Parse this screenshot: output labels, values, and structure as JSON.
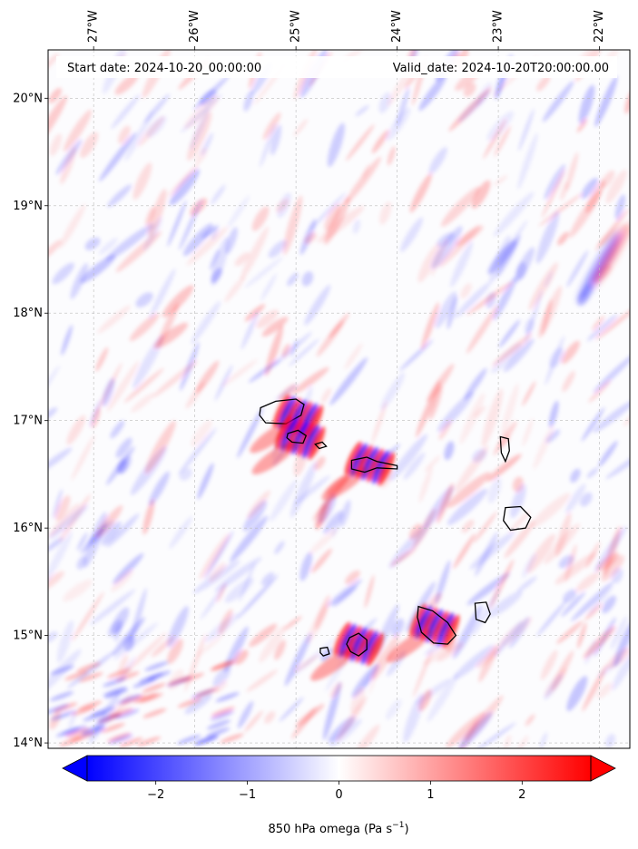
{
  "header": {
    "start_date": "Start date: 2024-10-20_00:00:00",
    "valid_date": "Valid_date: 2024-10-20T20:00:00.00"
  },
  "map": {
    "projection": "lat-lon",
    "lon_range": [
      -27.45,
      -21.7
    ],
    "lat_range": [
      13.95,
      20.45
    ],
    "grid": true,
    "lon_ticks": [
      {
        "value": -27,
        "label": "27°W"
      },
      {
        "value": -26,
        "label": "26°W"
      },
      {
        "value": -25,
        "label": "25°W"
      },
      {
        "value": -24,
        "label": "24°W"
      },
      {
        "value": -23,
        "label": "23°W"
      },
      {
        "value": -22,
        "label": "22°W"
      }
    ],
    "lat_ticks": [
      {
        "value": 20,
        "label": "20°N"
      },
      {
        "value": 19,
        "label": "19°N"
      },
      {
        "value": 18,
        "label": "18°N"
      },
      {
        "value": 17,
        "label": "17°N"
      },
      {
        "value": 16,
        "label": "16°N"
      },
      {
        "value": 15,
        "label": "15°N"
      },
      {
        "value": 14,
        "label": "14°N"
      }
    ],
    "field_colormap": "bwr",
    "islands": [
      {
        "name": "Santo Antão",
        "lon": -24.98,
        "lat": 17.04,
        "strong_omega": true
      },
      {
        "name": "São Vicente",
        "lon": -24.96,
        "lat": 16.84,
        "strong_omega": true
      },
      {
        "name": "Santa Luzia",
        "lon": -24.75,
        "lat": 16.76,
        "strong_omega": false
      },
      {
        "name": "São Nicolau",
        "lon": -24.27,
        "lat": 16.6,
        "strong_omega": true
      },
      {
        "name": "Sal",
        "lon": -22.93,
        "lat": 16.74,
        "strong_omega": false
      },
      {
        "name": "Boa Vista",
        "lon": -22.83,
        "lat": 16.09,
        "strong_omega": false
      },
      {
        "name": "Maio",
        "lon": -23.17,
        "lat": 15.2,
        "strong_omega": false
      },
      {
        "name": "Santiago",
        "lon": -23.63,
        "lat": 15.09,
        "strong_omega": true
      },
      {
        "name": "Fogo",
        "lon": -24.38,
        "lat": 14.92,
        "strong_omega": true
      },
      {
        "name": "Brava",
        "lon": -24.71,
        "lat": 14.85,
        "strong_omega": false
      }
    ]
  },
  "colorbar": {
    "vmin": -2.75,
    "vmax": 2.75,
    "colors": {
      "negative": "#0000ff",
      "zero": "#ffffff",
      "positive": "#ff0000"
    },
    "extend": "both",
    "ticks": [
      {
        "value": -2,
        "label": "−2"
      },
      {
        "value": -1,
        "label": "−1"
      },
      {
        "value": 0,
        "label": "0"
      },
      {
        "value": 1,
        "label": "1"
      },
      {
        "value": 2,
        "label": "2"
      }
    ],
    "label_main": "850 hPa omega (Pa s",
    "label_exp": "−1",
    "label_end": ")"
  }
}
